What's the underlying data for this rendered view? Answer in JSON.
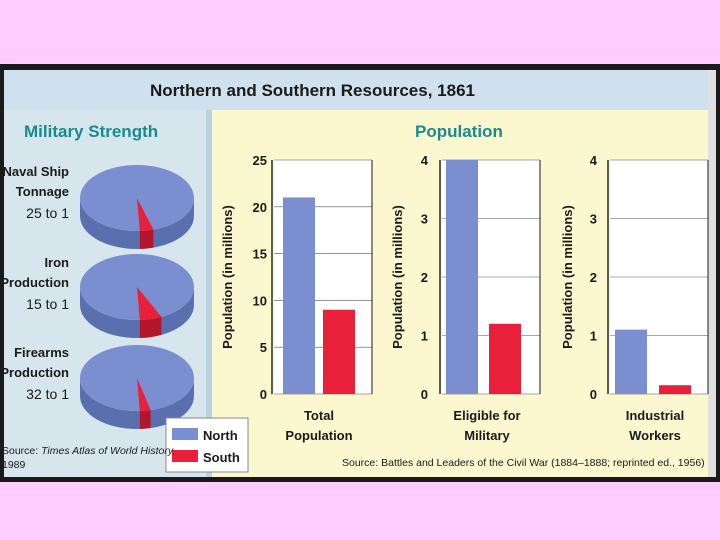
{
  "title": "Northern and Southern Resources, 1861",
  "colors": {
    "page_background": "#ffccff",
    "title_bar": "#cfe0ee",
    "left_panel": "#d6e6ec",
    "right_panel": "#fbf7cf",
    "north": "#7b8fd0",
    "south": "#e8203a",
    "teal_heading": "#178c8c",
    "frame": "#1a1a1a"
  },
  "legend": {
    "north": "North",
    "south": "South"
  },
  "military": {
    "heading": "Military Strength",
    "source_prefix": "Source:",
    "source_title": "Times Atlas of World History,",
    "source_year": "1989"
  },
  "population": {
    "heading": "Population",
    "ylabel": "Population (in millions)",
    "source": "Source: Battles and Leaders of the Civil War (1884–1888; reprinted ed., 1956)"
  },
  "chart_data": [
    {
      "type": "pie",
      "title_lines": [
        "Naval Ship",
        "Tonnage"
      ],
      "ratio_label": "25 to 1",
      "series": [
        {
          "name": "North",
          "value": 25
        },
        {
          "name": "South",
          "value": 1
        }
      ]
    },
    {
      "type": "pie",
      "title_lines": [
        "Iron",
        "Production"
      ],
      "ratio_label": "15 to 1",
      "series": [
        {
          "name": "North",
          "value": 15
        },
        {
          "name": "South",
          "value": 1
        }
      ]
    },
    {
      "type": "pie",
      "title_lines": [
        "Firearms",
        "Production"
      ],
      "ratio_label": "32 to 1",
      "series": [
        {
          "name": "North",
          "value": 32
        },
        {
          "name": "South",
          "value": 1
        }
      ]
    },
    {
      "type": "bar",
      "category_lines": [
        "Total",
        "Population"
      ],
      "ylabel": "Population (in millions)",
      "ylim": [
        0,
        25
      ],
      "yticks": [
        0,
        5,
        10,
        15,
        20,
        25
      ],
      "series": [
        {
          "name": "North",
          "values": [
            21
          ]
        },
        {
          "name": "South",
          "values": [
            9
          ]
        }
      ]
    },
    {
      "type": "bar",
      "category_lines": [
        "Eligible for",
        "Military"
      ],
      "ylabel": "Population (in millions)",
      "ylim": [
        0,
        4
      ],
      "yticks": [
        0,
        1,
        2,
        3,
        4
      ],
      "series": [
        {
          "name": "North",
          "values": [
            4.1
          ]
        },
        {
          "name": "South",
          "values": [
            1.2
          ]
        }
      ]
    },
    {
      "type": "bar",
      "category_lines": [
        "Industrial",
        "Workers"
      ],
      "ylabel": "Population (in millions)",
      "ylim": [
        0,
        4
      ],
      "yticks": [
        0,
        1,
        2,
        3,
        4
      ],
      "series": [
        {
          "name": "North",
          "values": [
            1.1
          ]
        },
        {
          "name": "South",
          "values": [
            0.15
          ]
        }
      ]
    }
  ]
}
